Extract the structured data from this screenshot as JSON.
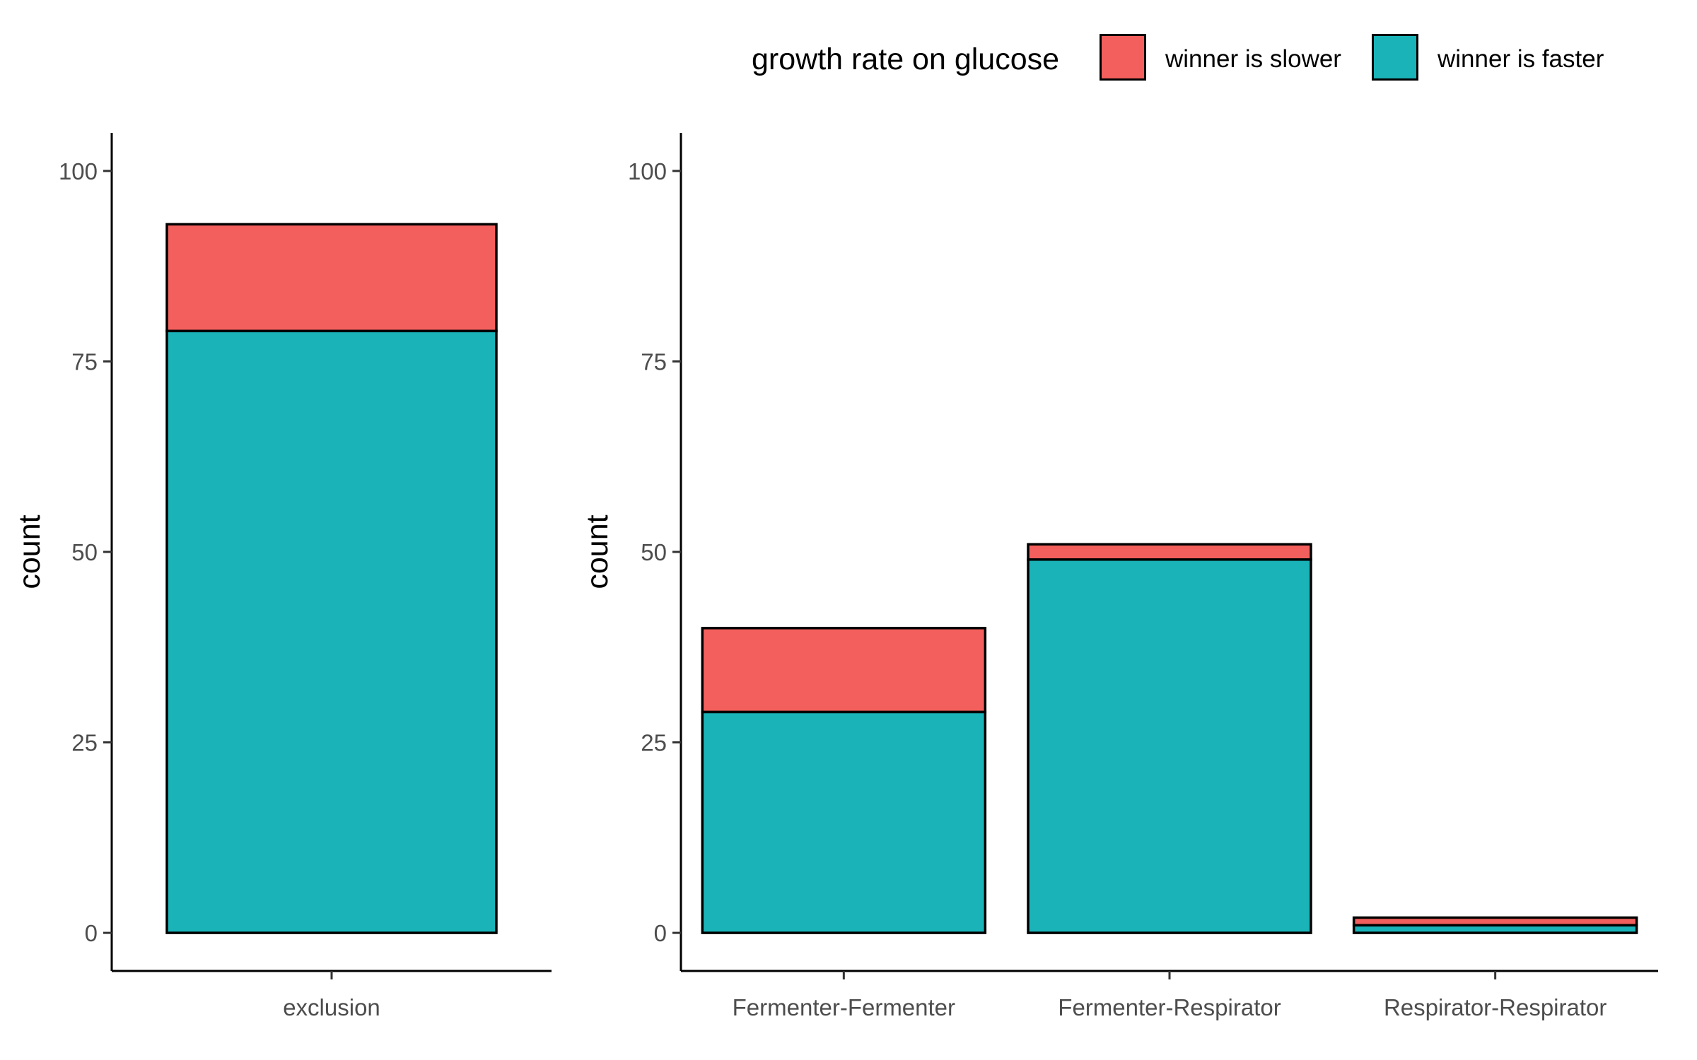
{
  "legend": {
    "title": "growth rate on glucose",
    "entries": [
      {
        "label": "winner is slower",
        "color": "#F35F5C"
      },
      {
        "label": "winner is faster",
        "color": "#19B3B8"
      }
    ]
  },
  "chart_data": [
    {
      "type": "bar",
      "stacked": true,
      "categories": [
        "exclusion"
      ],
      "series": [
        {
          "name": "winner is faster",
          "color": "#19B3B8",
          "values": [
            79
          ]
        },
        {
          "name": "winner is slower",
          "color": "#F35F5C",
          "values": [
            14
          ]
        }
      ],
      "ylabel": "count",
      "xlabel": "",
      "yticks": [
        0,
        25,
        50,
        75,
        100
      ],
      "ylim": [
        -5,
        105
      ],
      "grid": false,
      "legend": "top"
    },
    {
      "type": "bar",
      "stacked": true,
      "categories": [
        "Fermenter-Fermenter",
        "Fermenter-Respirator",
        "Respirator-Respirator"
      ],
      "series": [
        {
          "name": "winner is faster",
          "color": "#19B3B8",
          "values": [
            29,
            49,
            1
          ]
        },
        {
          "name": "winner is slower",
          "color": "#F35F5C",
          "values": [
            11,
            2,
            1
          ]
        }
      ],
      "ylabel": "count",
      "xlabel": "",
      "yticks": [
        0,
        25,
        50,
        75,
        100
      ],
      "ylim": [
        -5,
        105
      ],
      "grid": false,
      "legend": "top"
    }
  ]
}
